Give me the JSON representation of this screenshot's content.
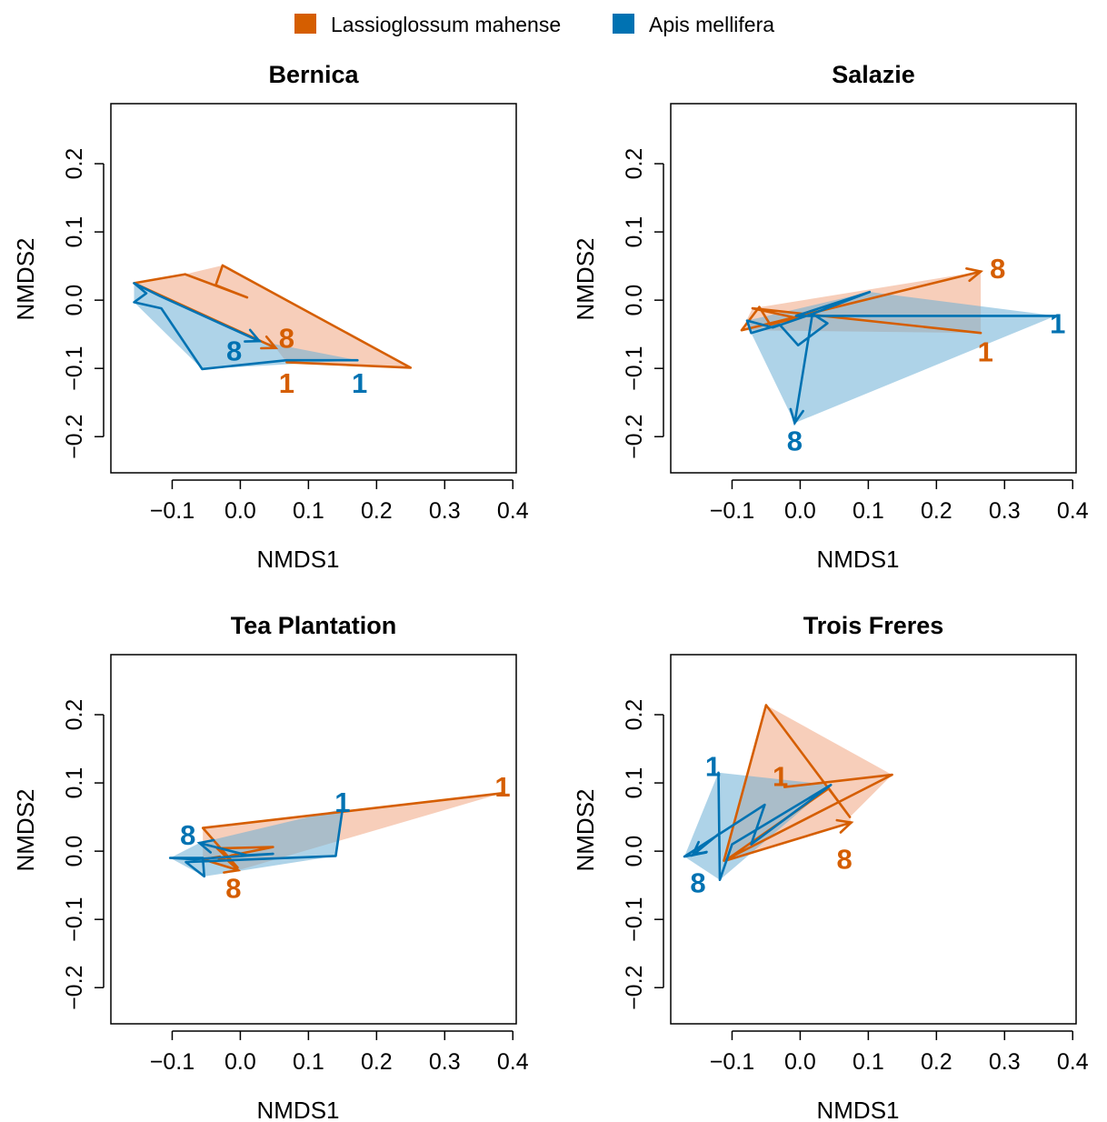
{
  "legend": {
    "items": [
      {
        "label": "Lassioglossum mahense",
        "color": "#D55E00"
      },
      {
        "label": "Apis mellifera",
        "color": "#0072B2"
      }
    ]
  },
  "colors": {
    "lassioglossum": "#D55E00",
    "apis": "#0072B2",
    "lassioglossum_fill": "#F0A582",
    "apis_fill": "#6BAED6"
  },
  "chart_data": [
    {
      "type": "scatter",
      "title": "Bernica",
      "xlabel": "NMDS1",
      "ylabel": "NMDS2",
      "xlim": [
        -0.19,
        0.405
      ],
      "ylim": [
        -0.253,
        0.288
      ],
      "xticks": [
        -0.1,
        0.0,
        0.1,
        0.2,
        0.3,
        0.4
      ],
      "yticks": [
        -0.2,
        -0.1,
        0.0,
        0.1,
        0.2
      ],
      "grid": false,
      "series": [
        {
          "name": "Lassioglossum mahense",
          "key": "lassioglossum",
          "trajectory": [
            [
              0.068,
              -0.091
            ],
            [
              0.25,
              -0.099
            ],
            [
              -0.026,
              0.051
            ],
            [
              -0.036,
              0.022
            ],
            [
              0.01,
              0.004
            ],
            [
              -0.081,
              0.038
            ],
            [
              -0.156,
              0.025
            ],
            [
              0.052,
              -0.07
            ]
          ],
          "hull": [
            [
              -0.156,
              0.025
            ],
            [
              -0.081,
              0.038
            ],
            [
              -0.026,
              0.051
            ],
            [
              0.25,
              -0.099
            ],
            [
              0.068,
              -0.091
            ],
            [
              0.052,
              -0.07
            ]
          ],
          "start_label": {
            "text": "1",
            "at": [
              0.068,
              -0.121
            ]
          },
          "end_label": {
            "text": "8",
            "at": [
              0.068,
              -0.055
            ]
          }
        },
        {
          "name": "Apis mellifera",
          "key": "apis",
          "trajectory": [
            [
              0.172,
              -0.088
            ],
            [
              0.068,
              -0.088
            ],
            [
              -0.056,
              -0.101
            ],
            [
              -0.116,
              -0.012
            ],
            [
              -0.156,
              -0.003
            ],
            [
              -0.138,
              0.01
            ],
            [
              -0.156,
              0.025
            ],
            [
              -0.118,
              0.006
            ],
            [
              0.028,
              -0.06
            ]
          ],
          "hull": [
            [
              -0.156,
              0.025
            ],
            [
              0.028,
              -0.06
            ],
            [
              0.172,
              -0.088
            ],
            [
              -0.056,
              -0.101
            ],
            [
              -0.156,
              -0.003
            ]
          ],
          "start_label": {
            "text": "1",
            "at": [
              0.175,
              -0.121
            ]
          },
          "end_label": {
            "text": "8",
            "at": [
              -0.009,
              -0.074
            ]
          }
        }
      ]
    },
    {
      "type": "scatter",
      "title": "Salazie",
      "xlabel": "NMDS1",
      "ylabel": "NMDS2",
      "xlim": [
        -0.19,
        0.405
      ],
      "ylim": [
        -0.253,
        0.288
      ],
      "xticks": [
        -0.1,
        0.0,
        0.1,
        0.2,
        0.3,
        0.4
      ],
      "yticks": [
        -0.2,
        -0.1,
        0.0,
        0.1,
        0.2
      ],
      "grid": false,
      "series": [
        {
          "name": "Lassioglossum mahense",
          "key": "lassioglossum",
          "trajectory": [
            [
              0.265,
              -0.048
            ],
            [
              -0.07,
              -0.012
            ],
            [
              -0.006,
              -0.026
            ],
            [
              -0.044,
              -0.036
            ],
            [
              -0.06,
              -0.01
            ],
            [
              -0.086,
              -0.044
            ],
            [
              0.265,
              0.042
            ]
          ],
          "hull": [
            [
              -0.086,
              -0.044
            ],
            [
              -0.07,
              -0.012
            ],
            [
              0.265,
              0.042
            ],
            [
              0.265,
              -0.048
            ]
          ],
          "start_label": {
            "text": "1",
            "at": [
              0.272,
              -0.075
            ]
          },
          "end_label": {
            "text": "8",
            "at": [
              0.29,
              0.047
            ]
          }
        },
        {
          "name": "Apis mellifera",
          "key": "apis",
          "trajectory": [
            [
              0.375,
              -0.023
            ],
            [
              -0.006,
              -0.023
            ],
            [
              0.102,
              0.012
            ],
            [
              0.018,
              -0.02
            ],
            [
              0.04,
              -0.034
            ],
            [
              -0.003,
              -0.066
            ],
            [
              -0.03,
              -0.036
            ],
            [
              -0.072,
              -0.048
            ],
            [
              -0.078,
              -0.03
            ],
            [
              -0.04,
              -0.04
            ],
            [
              0.018,
              -0.02
            ],
            [
              -0.008,
              -0.18
            ]
          ],
          "hull": [
            [
              -0.078,
              -0.03
            ],
            [
              0.102,
              0.012
            ],
            [
              0.375,
              -0.023
            ],
            [
              -0.008,
              -0.18
            ],
            [
              -0.072,
              -0.048
            ]
          ],
          "start_label": {
            "text": "1",
            "at": [
              0.378,
              -0.034
            ]
          },
          "end_label": {
            "text": "8",
            "at": [
              -0.008,
              -0.206
            ]
          }
        }
      ]
    },
    {
      "type": "scatter",
      "title": "Tea Plantation",
      "xlabel": "NMDS1",
      "ylabel": "NMDS2",
      "xlim": [
        -0.19,
        0.405
      ],
      "ylim": [
        -0.253,
        0.288
      ],
      "xticks": [
        -0.1,
        0.0,
        0.1,
        0.2,
        0.3,
        0.4
      ],
      "yticks": [
        -0.2,
        -0.1,
        0.0,
        0.1,
        0.2
      ],
      "grid": false,
      "series": [
        {
          "name": "Lassioglossum mahense",
          "key": "lassioglossum",
          "trajectory": [
            [
              0.385,
              0.085
            ],
            [
              -0.055,
              0.034
            ],
            [
              -0.004,
              -0.024
            ],
            [
              -0.034,
              0.004
            ],
            [
              0.048,
              0.006
            ],
            [
              -0.012,
              -0.006
            ],
            [
              -0.032,
              -0.014
            ],
            [
              -0.03,
              -0.008
            ],
            [
              -0.055,
              -0.012
            ],
            [
              -0.003,
              -0.028
            ]
          ],
          "hull": [
            [
              -0.055,
              0.034
            ],
            [
              0.385,
              0.085
            ],
            [
              -0.003,
              -0.028
            ],
            [
              -0.055,
              -0.012
            ]
          ],
          "start_label": {
            "text": "1",
            "at": [
              0.385,
              0.095
            ]
          },
          "end_label": {
            "text": "8",
            "at": [
              -0.01,
              -0.054
            ]
          }
        },
        {
          "name": "Apis mellifera",
          "key": "apis",
          "trajectory": [
            [
              0.15,
              0.062
            ],
            [
              0.14,
              -0.007
            ],
            [
              -0.08,
              -0.016
            ],
            [
              -0.053,
              -0.037
            ],
            [
              -0.055,
              -0.01
            ],
            [
              -0.103,
              -0.01
            ],
            [
              -0.068,
              -0.012
            ],
            [
              0.048,
              -0.004
            ],
            [
              0.01,
              -0.006
            ],
            [
              -0.06,
              0.012
            ]
          ],
          "hull": [
            [
              -0.103,
              -0.01
            ],
            [
              -0.06,
              0.012
            ],
            [
              0.15,
              0.062
            ],
            [
              0.14,
              -0.007
            ],
            [
              -0.053,
              -0.037
            ]
          ],
          "start_label": {
            "text": "1",
            "at": [
              0.15,
              0.072
            ]
          },
          "end_label": {
            "text": "8",
            "at": [
              -0.077,
              0.024
            ]
          }
        }
      ]
    },
    {
      "type": "scatter",
      "title": "Trois Freres",
      "xlabel": "NMDS1",
      "ylabel": "NMDS2",
      "xlim": [
        -0.19,
        0.405
      ],
      "ylim": [
        -0.253,
        0.288
      ],
      "xticks": [
        -0.1,
        0.0,
        0.1,
        0.2,
        0.3,
        0.4
      ],
      "yticks": [
        -0.2,
        -0.1,
        0.0,
        0.1,
        0.2
      ],
      "grid": false,
      "series": [
        {
          "name": "Lassioglossum mahense",
          "key": "lassioglossum",
          "trajectory": [
            [
              -0.023,
              0.094
            ],
            [
              0.135,
              0.112
            ],
            [
              -0.112,
              -0.014
            ],
            [
              -0.05,
              0.214
            ],
            [
              0.073,
              0.05
            ],
            [
              0.042,
              0.092
            ],
            [
              -0.11,
              -0.014
            ],
            [
              0.075,
              0.042
            ]
          ],
          "hull": [
            [
              -0.112,
              -0.014
            ],
            [
              -0.05,
              0.214
            ],
            [
              0.135,
              0.112
            ],
            [
              0.073,
              0.05
            ],
            [
              0.075,
              0.042
            ]
          ],
          "start_label": {
            "text": "1",
            "at": [
              -0.029,
              0.11
            ]
          },
          "end_label": {
            "text": "8",
            "at": [
              0.065,
              -0.011
            ]
          }
        },
        {
          "name": "Apis mellifera",
          "key": "apis",
          "trajectory": [
            [
              -0.12,
              0.115
            ],
            [
              -0.118,
              -0.042
            ],
            [
              -0.1,
              0.01
            ],
            [
              0.045,
              0.097
            ],
            [
              -0.072,
              0.01
            ],
            [
              -0.052,
              0.068
            ],
            [
              -0.17,
              -0.008
            ],
            [
              -0.138,
              -0.002
            ],
            [
              -0.156,
              -0.004
            ],
            [
              -0.12,
              0.025
            ],
            [
              -0.158,
              -0.006
            ]
          ],
          "hull": [
            [
              -0.17,
              -0.008
            ],
            [
              -0.12,
              0.115
            ],
            [
              0.045,
              0.097
            ],
            [
              -0.118,
              -0.042
            ]
          ],
          "start_label": {
            "text": "1",
            "at": [
              -0.128,
              0.125
            ]
          },
          "end_label": {
            "text": "8",
            "at": [
              -0.15,
              -0.046
            ]
          }
        }
      ]
    }
  ]
}
